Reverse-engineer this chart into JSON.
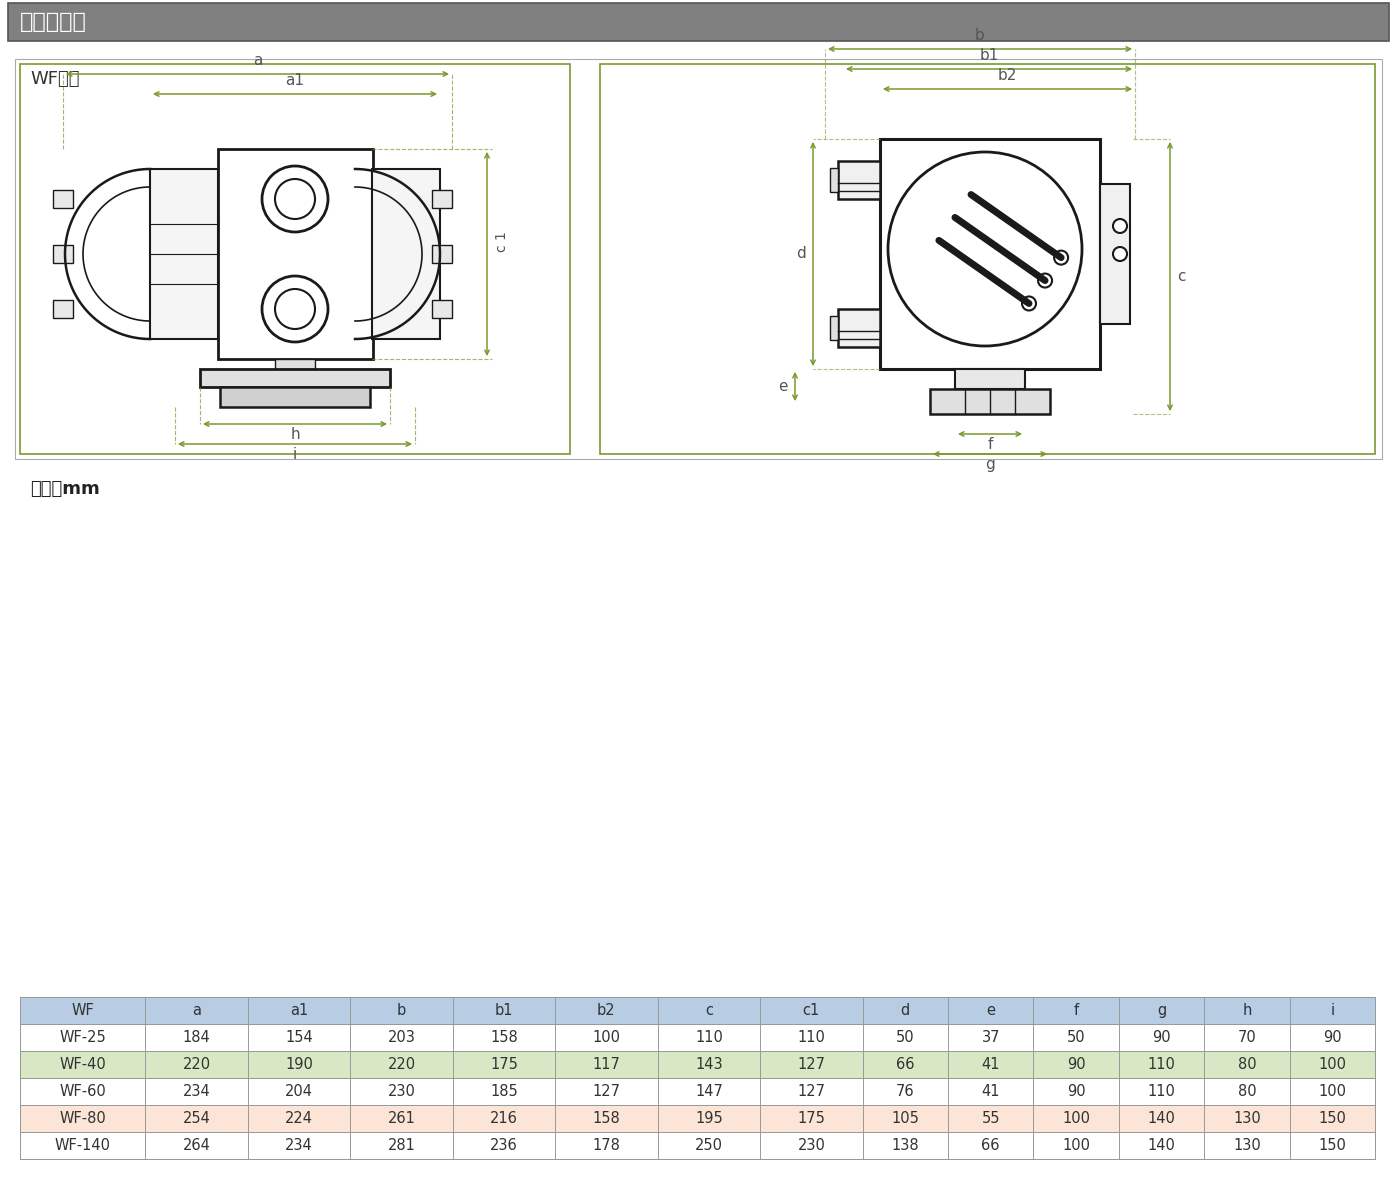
{
  "title_bar_text": "外形尺寸：",
  "title_bar_bg": "#808080",
  "title_bar_text_color": "#ffffff",
  "wf_label": "WF系列",
  "unit_label": "单位：mm",
  "bg_color": "#ffffff",
  "table_header_bg": "#b8cce4",
  "table_row_colors": [
    "#ffffff",
    "#d9e8c4",
    "#ffffff",
    "#fce4d6",
    "#ffffff"
  ],
  "table_headers": [
    "WF",
    "a",
    "a1",
    "b",
    "b1",
    "b2",
    "c",
    "c1",
    "d",
    "e",
    "f",
    "g",
    "h",
    "i"
  ],
  "table_rows": [
    [
      "WF-25",
      "184",
      "154",
      "203",
      "158",
      "100",
      "110",
      "110",
      "50",
      "37",
      "50",
      "90",
      "70",
      "90"
    ],
    [
      "WF-40",
      "220",
      "190",
      "220",
      "175",
      "117",
      "143",
      "127",
      "66",
      "41",
      "90",
      "110",
      "80",
      "100"
    ],
    [
      "WF-60",
      "234",
      "204",
      "230",
      "185",
      "127",
      "147",
      "127",
      "76",
      "41",
      "90",
      "110",
      "80",
      "100"
    ],
    [
      "WF-80",
      "254",
      "224",
      "261",
      "216",
      "158",
      "195",
      "175",
      "105",
      "55",
      "100",
      "140",
      "130",
      "150"
    ],
    [
      "WF-140",
      "264",
      "234",
      "281",
      "236",
      "178",
      "250",
      "230",
      "138",
      "66",
      "100",
      "140",
      "130",
      "150"
    ]
  ],
  "dim_color": "#7a9a2e",
  "drawing_line_color": "#1a1a1a",
  "border_color": "#c0c0c0"
}
